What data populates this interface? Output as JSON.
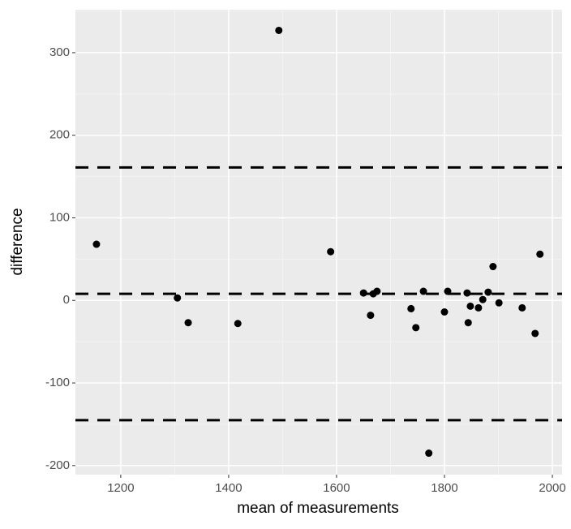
{
  "chart_data": {
    "type": "scatter",
    "x_label": "mean of measurements",
    "y_label": "difference",
    "x": [
      1155,
      1305,
      1325,
      1417,
      1493,
      1589,
      1650,
      1663,
      1668,
      1675,
      1738,
      1747,
      1761,
      1771,
      1800,
      1806,
      1842,
      1844,
      1848,
      1863,
      1871,
      1881,
      1890,
      1901,
      1944,
      1968,
      1977
    ],
    "values": [
      68,
      3,
      -27,
      -28,
      327,
      59,
      9,
      -18,
      8,
      11,
      -10,
      -33,
      11,
      -185,
      -14,
      11,
      9,
      -27,
      -7,
      -9,
      1,
      10,
      41,
      -3,
      -9,
      -40,
      56
    ],
    "color": "#000000",
    "hlines": [
      161,
      8,
      -145
    ],
    "xlim": [
      1116,
      2018
    ],
    "xticks": [
      1200,
      1400,
      1600,
      1800,
      2000
    ],
    "ylim": [
      -211,
      352
    ],
    "yticks": [
      -200,
      -100,
      0,
      100,
      200,
      300
    ],
    "grid": true
  }
}
